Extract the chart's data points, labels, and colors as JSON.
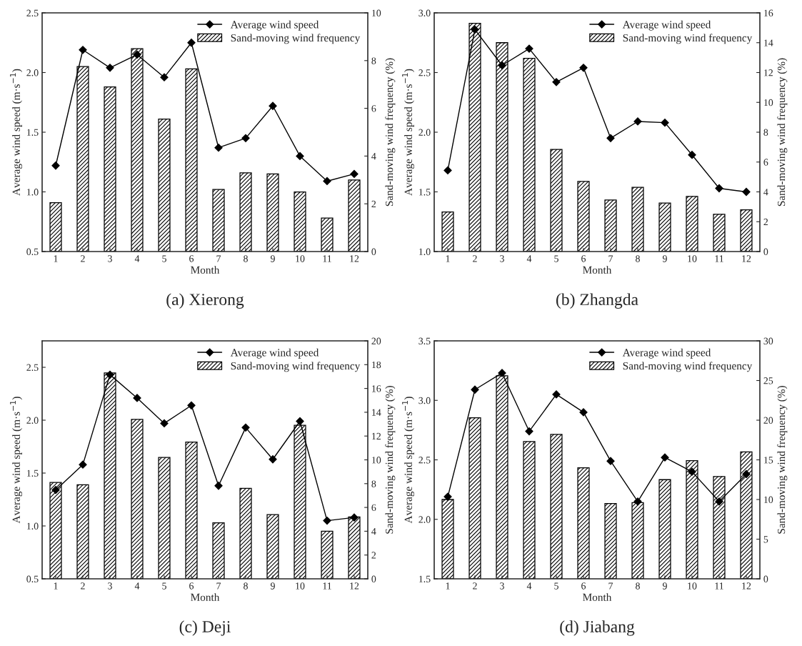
{
  "chart_data": [
    {
      "type": "bar",
      "title": "(a) Xierong",
      "xlabel": "Month",
      "ylabel": "Average wind speed (m·s$^{−1}$)",
      "y2label": "Sand-moving wind frequency (%)",
      "categories": [
        "1",
        "2",
        "3",
        "4",
        "5",
        "6",
        "7",
        "8",
        "9",
        "10",
        "11",
        "12"
      ],
      "series": [
        {
          "name": "Average wind speed",
          "type": "line",
          "color": "#000000",
          "marker": "diamond",
          "line_style": "solid",
          "axis": "y",
          "values": [
            1.22,
            2.19,
            2.04,
            2.15,
            1.96,
            2.25,
            1.37,
            1.45,
            1.72,
            1.3,
            1.09,
            1.15
          ]
        },
        {
          "name": "Sand-moving wind frequency",
          "color": "#000000",
          "axis": "y2",
          "values": [
            2.05,
            7.75,
            6.9,
            8.5,
            5.55,
            7.65,
            2.6,
            3.3,
            3.25,
            2.5,
            1.4,
            3.0
          ]
        }
      ],
      "ylim": [
        0.5,
        2.5
      ],
      "yticks": [
        0.5,
        {
          "value": 1,
          "label": "1.0"
        },
        1.5,
        {
          "value": 2,
          "label": "2.0"
        },
        2.5
      ],
      "y2lim": [
        0,
        10
      ],
      "y2ticks": [
        0,
        2,
        4,
        6,
        8,
        10
      ],
      "legend": "top right",
      "grid": false
    },
    {
      "type": "bar",
      "title": "(b) Zhangda",
      "xlabel": "Month",
      "ylabel": "Average wind speed (m·s$^{−1}$)",
      "y2label": "Sand-moving wind frequency (%)",
      "categories": [
        "1",
        "2",
        "3",
        "4",
        "5",
        "6",
        "7",
        "8",
        "9",
        "10",
        "11",
        "12"
      ],
      "series": [
        {
          "name": "Average wind speed",
          "type": "line",
          "color": "#000000",
          "marker": "diamond",
          "line_style": "solid",
          "axis": "y",
          "values": [
            1.68,
            2.86,
            2.56,
            2.7,
            2.42,
            2.54,
            1.95,
            2.09,
            2.08,
            1.81,
            1.53,
            1.5
          ]
        },
        {
          "name": "Sand-moving wind frequency",
          "color": "#000000",
          "axis": "y2",
          "values": [
            2.65,
            15.3,
            14.0,
            12.95,
            6.85,
            4.7,
            3.45,
            4.3,
            3.25,
            3.7,
            2.5,
            2.8
          ]
        }
      ],
      "ylim": [
        1.0,
        3.0
      ],
      "yticks": [
        {
          "value": 1,
          "label": "1.0"
        },
        1.5,
        {
          "value": 2,
          "label": "2.0"
        },
        2.5,
        {
          "value": 3,
          "label": "3.0"
        }
      ],
      "y2lim": [
        0,
        16
      ],
      "y2ticks": [
        0,
        2,
        4,
        6,
        8,
        10,
        12,
        14,
        16
      ],
      "legend": "top right",
      "grid": false
    },
    {
      "type": "bar",
      "title": "(c) Deji",
      "xlabel": "Month",
      "ylabel": "Average wind speed (m·s$^{−1}$)",
      "y2label": "Sand-moving wind frequency (%)",
      "categories": [
        "1",
        "2",
        "3",
        "4",
        "5",
        "6",
        "7",
        "8",
        "9",
        "10",
        "11",
        "12"
      ],
      "series": [
        {
          "name": "Average wind speed",
          "type": "line",
          "color": "#000000",
          "marker": "diamond",
          "line_style": "solid",
          "axis": "y",
          "values": [
            1.34,
            1.58,
            2.43,
            2.21,
            1.97,
            2.14,
            1.38,
            1.93,
            1.63,
            1.99,
            1.05,
            1.08
          ]
        },
        {
          "name": "Sand-moving wind frequency",
          "color": "#000000",
          "axis": "y2",
          "values": [
            8.1,
            7.9,
            17.3,
            13.4,
            10.2,
            11.5,
            4.7,
            7.6,
            5.4,
            12.9,
            4.0,
            5.2
          ]
        }
      ],
      "ylim": [
        0.5,
        2.75
      ],
      "yticks": [
        0.5,
        {
          "value": 1,
          "label": "1.0"
        },
        1.5,
        {
          "value": 2,
          "label": "2.0"
        },
        2.5
      ],
      "y2lim": [
        0,
        20
      ],
      "y2ticks": [
        0,
        2,
        4,
        6,
        8,
        10,
        12,
        14,
        16,
        18,
        20
      ],
      "legend": "top right",
      "grid": false
    },
    {
      "type": "bar",
      "title": "(d) Jiabang",
      "xlabel": "Month",
      "ylabel": "Average wind speed (m·s$^{−1}$)",
      "y2label": "Sand-moving wind frequency (%)",
      "categories": [
        "1",
        "2",
        "3",
        "4",
        "5",
        "6",
        "7",
        "8",
        "9",
        "10",
        "11",
        "12"
      ],
      "series": [
        {
          "name": "Average wind speed",
          "type": "line",
          "color": "#000000",
          "marker": "diamond",
          "line_style": "solid",
          "axis": "y",
          "values": [
            2.19,
            3.09,
            3.23,
            2.74,
            3.05,
            2.9,
            2.49,
            2.15,
            2.52,
            2.4,
            2.15,
            2.38
          ]
        },
        {
          "name": "Sand-moving wind frequency",
          "color": "#000000",
          "axis": "y2",
          "values": [
            10.0,
            20.3,
            25.6,
            17.3,
            18.2,
            14.0,
            9.5,
            9.6,
            12.5,
            14.9,
            12.9,
            16.0
          ]
        }
      ],
      "ylim": [
        1.5,
        3.5
      ],
      "yticks": [
        1.5,
        {
          "value": 2,
          "label": "2.0"
        },
        2.5,
        {
          "value": 3,
          "label": "3.0"
        },
        3.5
      ],
      "y2lim": [
        0,
        30
      ],
      "y2ticks": [
        0,
        5,
        10,
        15,
        20,
        25,
        30
      ],
      "legend": "top right",
      "grid": false
    }
  ]
}
